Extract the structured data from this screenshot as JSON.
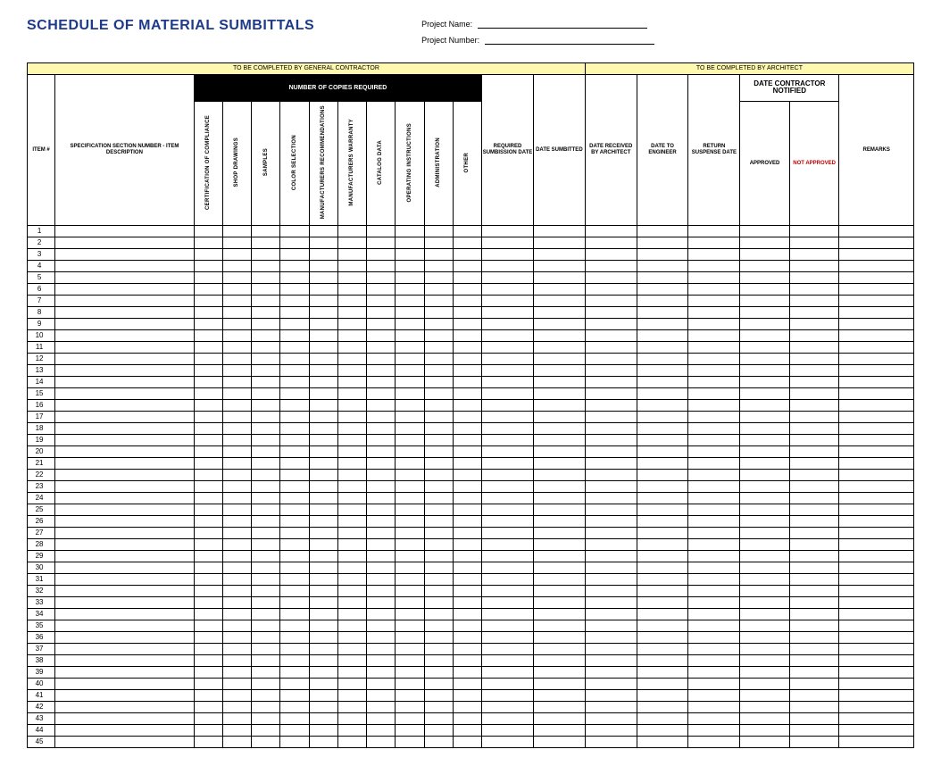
{
  "title": "SCHEDULE OF MATERIAL SUMBITTALS",
  "meta": {
    "projectNameLabel": "Project Name:",
    "projectNumberLabel": "Project Number:"
  },
  "sectionHeaders": {
    "contractor": "TO BE COMPLETED BY GENERAL CONTRACTOR",
    "architect": "TO BE COMPLETED BY ARCHITECT"
  },
  "copiesHeader": "NUMBER OF COPIES REQUIRED",
  "columns": {
    "item": "ITEM #",
    "spec": "SPECIFICATION SECTION NUMBER - ITEM DESCRIPTION",
    "copies": [
      "CERTIFICATION OF COMPLIANCE",
      "SHOP DRAWINGS",
      "SAMPLES",
      "COLOR SELECTION",
      "MANUFACTURERS RECOMMENDATIONS",
      "MANUFACTURERS WARRANTY",
      "CATALOG DATA",
      "OPERATING INSTRUCTIONS",
      "ADMINISTRATION",
      "OTHER"
    ],
    "reqSubDate": "REQUIRED SUMBISSION DATE",
    "dateSubmitted": "DATE SUMBITTED",
    "dateReceived": "DATE RECEIVED BY ARCHITECT",
    "dateToEng": "DATE TO ENGINEER",
    "returnSusp": "RETURN SUSPENSE DATE",
    "notified": "DATE CONTRACTOR NOTIFIED",
    "approved": "APPROVED",
    "notApproved": "NOT APPROVED",
    "remarks": "REMARKS"
  },
  "rowCount": 45,
  "colors": {
    "titleColor": "#1e3a8a",
    "yellowBg": "#fff9b0",
    "blackBg": "#000000",
    "redText": "#c00000",
    "border": "#000000",
    "background": "#ffffff"
  }
}
